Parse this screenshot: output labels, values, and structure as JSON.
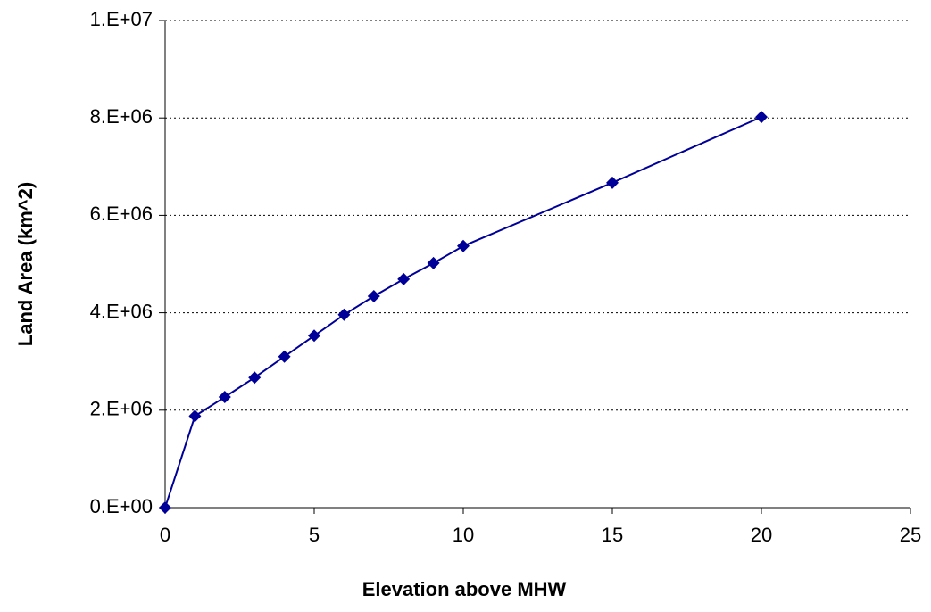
{
  "chart_data": {
    "type": "line",
    "x_label": "Elevation above MHW",
    "y_label": "Land Area (km^2)",
    "x": [
      0,
      1,
      2,
      3,
      4,
      5,
      6,
      7,
      8,
      9,
      10,
      15,
      20
    ],
    "values": [
      0,
      1880000,
      2270000,
      2670000,
      3100000,
      3530000,
      3960000,
      4340000,
      4690000,
      5020000,
      5370000,
      6670000,
      8020000
    ],
    "color": "#000099",
    "xlim": [
      0,
      25
    ],
    "xticks": [
      0,
      5,
      10,
      15,
      20,
      25
    ],
    "ylim": [
      0,
      10000000
    ],
    "yticks": [
      {
        "value": 0,
        "label": "0.E+00"
      },
      {
        "value": 2000000,
        "label": "2.E+06"
      },
      {
        "value": 4000000,
        "label": "4.E+06"
      },
      {
        "value": 6000000,
        "label": "6.E+06"
      },
      {
        "value": 8000000,
        "label": "8.E+06"
      },
      {
        "value": 10000000,
        "label": "1.E+07"
      }
    ],
    "grid": true
  }
}
